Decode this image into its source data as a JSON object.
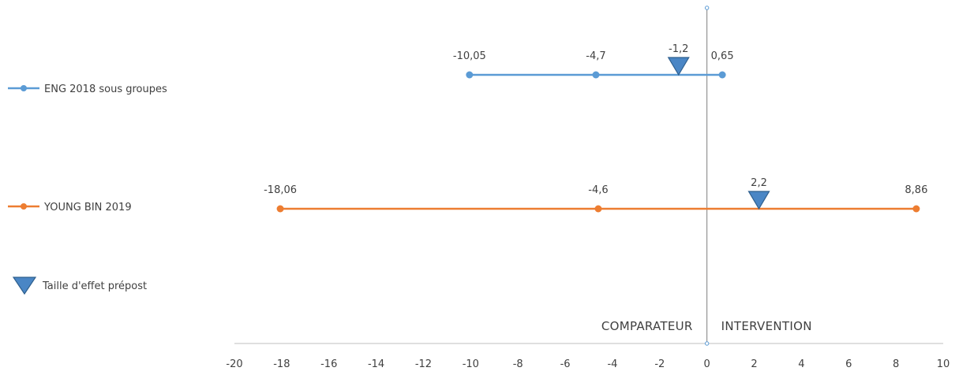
{
  "chart_data": {
    "type": "line",
    "title": "",
    "xlabel": "",
    "ylabel": "",
    "xlim": [
      -20,
      10
    ],
    "x_ticks": [
      -20,
      -18,
      -16,
      -14,
      -12,
      -10,
      -8,
      -6,
      -4,
      -2,
      0,
      2,
      4,
      6,
      8,
      10
    ],
    "grid": false,
    "legend_position": "left",
    "series": [
      {
        "name": "ENG 2018 sous groupes",
        "color": "#5b9bd5",
        "points": [
          {
            "x": -10.05,
            "label": "-10,05"
          },
          {
            "x": -4.7,
            "label": "-4,7"
          },
          {
            "x": 0.65,
            "label": "0,65"
          }
        ]
      },
      {
        "name": "YOUNG BIN 2019",
        "color": "#ed7d31",
        "points": [
          {
            "x": -18.06,
            "label": "-18,06"
          },
          {
            "x": -4.6,
            "label": "-4,6"
          },
          {
            "x": 8.86,
            "label": "8,86"
          }
        ]
      }
    ],
    "effect_markers": {
      "name": "Taille d'effet prépost",
      "color": "#4a86c5",
      "icon": "triangle-down",
      "points": [
        {
          "series": "ENG 2018 sous groupes",
          "x": -1.2,
          "label": "-1,2"
        },
        {
          "series": "YOUNG BIN 2019",
          "x": 2.2,
          "label": "2,2"
        }
      ]
    },
    "annotations": {
      "left": "COMPARATEUR",
      "right": "INTERVENTION"
    },
    "axis_color": "#bfbfbf",
    "zero_line_color": "#7f7f7f"
  }
}
